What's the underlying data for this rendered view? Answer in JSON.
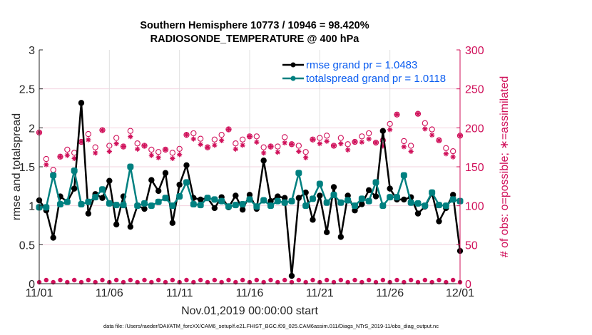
{
  "chart_data": {
    "type": "line",
    "title": "Southern Hemisphere 10773 / 10946 = 98.420%",
    "subtitle": "RADIOSONDE_TEMPERATURE @ 400 hPa",
    "xlabel": "Nov.01,2019 00:00:00 start",
    "ylabel": "rmse and totalspread",
    "ylabel_right": "# of obs: o=possible; ∗=assimilated",
    "x_tick_labels": [
      "11/01",
      "11/06",
      "11/11",
      "11/16",
      "11/21",
      "11/26",
      "12/01"
    ],
    "x_tick_days": [
      0,
      5,
      10,
      15,
      20,
      25,
      30
    ],
    "xlim_days": [
      0,
      30
    ],
    "ylim": [
      0,
      3
    ],
    "y_ticks": [
      "0",
      "0.5",
      "1",
      "1.5",
      "2",
      "2.5",
      "3"
    ],
    "ylim_right": [
      0,
      300
    ],
    "y_ticks_right": [
      "0",
      "50",
      "100",
      "150",
      "200",
      "250",
      "300"
    ],
    "grid": true,
    "legend_position": "top-right",
    "x_days": [
      0.0,
      0.5,
      1.0,
      1.5,
      2.0,
      2.5,
      3.0,
      3.5,
      4.0,
      4.5,
      5.0,
      5.5,
      6.0,
      6.5,
      7.0,
      7.5,
      8.0,
      8.5,
      9.0,
      9.5,
      10.0,
      10.5,
      11.0,
      11.5,
      12.0,
      12.5,
      13.0,
      13.5,
      14.0,
      14.5,
      15.0,
      15.5,
      16.0,
      16.5,
      17.0,
      17.5,
      18.0,
      18.5,
      19.0,
      19.5,
      20.0,
      20.5,
      21.0,
      21.5,
      22.0,
      22.5,
      23.0,
      23.5,
      24.0,
      24.5,
      25.0,
      25.5,
      26.0,
      26.5,
      27.0,
      27.5,
      28.0,
      28.5,
      29.0,
      29.5,
      30.0
    ],
    "series": [
      {
        "name": "rmse grand pr = 1.0483",
        "color": "#000000",
        "values": [
          1.07,
          0.94,
          0.59,
          1.12,
          1.05,
          1.22,
          2.32,
          0.9,
          1.15,
          1.1,
          1.32,
          0.76,
          1.12,
          0.73,
          1.0,
          0.96,
          1.33,
          1.19,
          1.42,
          0.78,
          1.27,
          1.52,
          1.1,
          1.08,
          1.1,
          0.97,
          1.11,
          0.98,
          1.13,
          0.95,
          1.14,
          0.96,
          1.58,
          1.06,
          1.12,
          1.1,
          0.1,
          1.1,
          1.17,
          0.82,
          1.13,
          0.66,
          1.24,
          0.6,
          1.13,
          0.94,
          1.02,
          1.2,
          1.12,
          1.96,
          1.22,
          1.08,
          1.08,
          1.11,
          0.9,
          0.99,
          1.16,
          0.8,
          0.97,
          1.14,
          0.42
        ]
      },
      {
        "name": "totalspread grand pr = 1.0118",
        "color": "#008080",
        "values": [
          0.98,
          0.98,
          1.39,
          1.02,
          1.05,
          1.45,
          1.02,
          1.05,
          1.11,
          1.21,
          1.03,
          1.01,
          1.01,
          1.5,
          1.0,
          1.03,
          1.0,
          1.05,
          1.1,
          1.0,
          1.12,
          1.3,
          1.02,
          1.01,
          1.1,
          1.08,
          1.06,
          0.99,
          1.01,
          1.02,
          1.08,
          0.99,
          1.07,
          1.0,
          1.06,
          1.04,
          1.06,
          1.42,
          1.0,
          1.09,
          1.28,
          1.04,
          1.14,
          1.04,
          1.07,
          1.0,
          1.09,
          1.06,
          1.3,
          1.0,
          1.11,
          1.11,
          1.39,
          1.04,
          1.03,
          1.0,
          1.17,
          1.01,
          1.0,
          1.08,
          1.06
        ]
      }
    ],
    "obs_possible": [
      194,
      160,
      146,
      163,
      172,
      168,
      182,
      192,
      175,
      197,
      177,
      187,
      176,
      196,
      180,
      177,
      172,
      169,
      172,
      168,
      173,
      191,
      193,
      186,
      175,
      185,
      191,
      198,
      180,
      185,
      189,
      189,
      175,
      176,
      176,
      188,
      179,
      177,
      169,
      185,
      187,
      190,
      177,
      187,
      179,
      182,
      189,
      193,
      181,
      184,
      205,
      217,
      183,
      177,
      218,
      206,
      198,
      184,
      174,
      170,
      190
    ]
  }
}
